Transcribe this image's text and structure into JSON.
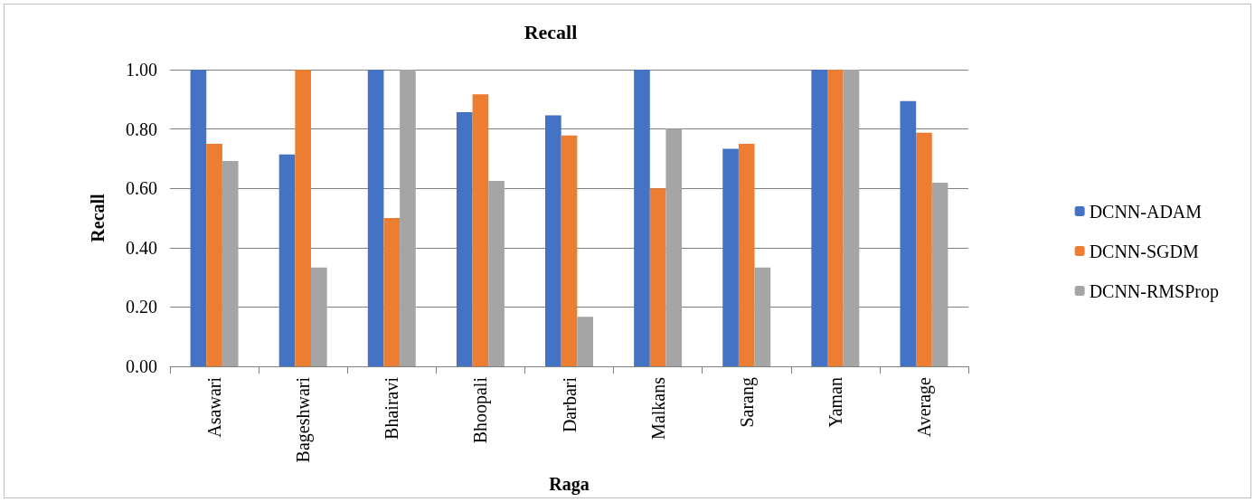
{
  "chart_data": {
    "type": "bar",
    "title": "Recall",
    "xlabel": "Raga",
    "ylabel": "Recall",
    "categories": [
      "Asawari",
      "Bageshwari",
      "Bhairavi",
      "Bhoopali",
      "Darbari",
      "Malkans",
      "Sarang",
      "Yaman",
      "Average"
    ],
    "series": [
      {
        "name": "DCNN-ADAM",
        "color": "#4472c4",
        "values": [
          1.0,
          0.714,
          1.0,
          0.857,
          0.846,
          1.0,
          0.733,
          1.0,
          0.894
        ]
      },
      {
        "name": "DCNN-SGDM",
        "color": "#ed7d31",
        "values": [
          0.75,
          1.0,
          0.5,
          0.917,
          0.778,
          0.6,
          0.75,
          1.0,
          0.787
        ]
      },
      {
        "name": "DCNN-RMSProp",
        "color": "#a5a5a5",
        "values": [
          0.692,
          0.333,
          1.0,
          0.625,
          0.167,
          0.8,
          0.333,
          1.0,
          0.619
        ]
      }
    ],
    "ylim": [
      0,
      1
    ],
    "yticks": [
      {
        "value": 0,
        "label": "0.00"
      },
      {
        "value": 0.2,
        "label": "0.20"
      },
      {
        "value": 0.4,
        "label": "0.40"
      },
      {
        "value": 0.6,
        "label": "0.60"
      },
      {
        "value": 0.8,
        "label": "0.80"
      },
      {
        "value": 1,
        "label": "1.00"
      }
    ],
    "grid": "y",
    "legend": "right"
  }
}
